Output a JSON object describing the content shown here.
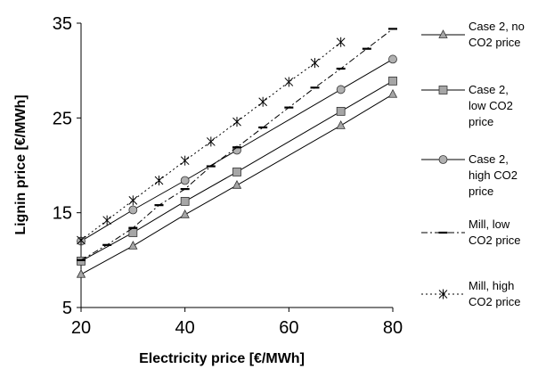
{
  "chart_data": {
    "type": "line",
    "title": "",
    "xlabel": "Electricity price [€/MWh]",
    "ylabel": "Lignin price [€/MWh]",
    "xlim": [
      20,
      80
    ],
    "ylim": [
      5,
      35
    ],
    "xticks": [
      "20",
      "40",
      "60",
      "80"
    ],
    "yticks": [
      "5",
      "15",
      "25",
      "35"
    ],
    "grid": false,
    "legend_position": "right",
    "series": [
      {
        "name": "Case 2, no CO2 price",
        "label_lines": [
          "Case 2, no",
          "CO2 price"
        ],
        "marker": "triangle",
        "line": "solid",
        "x": [
          20,
          30,
          40,
          50,
          70,
          80
        ],
        "y": [
          8.5,
          11.5,
          14.8,
          17.9,
          24.2,
          27.5
        ]
      },
      {
        "name": "Case 2, low CO2 price",
        "label_lines": [
          "Case 2,",
          "low CO2",
          "price"
        ],
        "marker": "square",
        "line": "solid",
        "x": [
          20,
          30,
          40,
          50,
          70,
          80
        ],
        "y": [
          9.9,
          12.9,
          16.2,
          19.3,
          25.7,
          28.9
        ]
      },
      {
        "name": "Case 2, high CO2 price",
        "label_lines": [
          "Case 2,",
          "high CO2",
          "price"
        ],
        "marker": "circle",
        "line": "solid",
        "x": [
          20,
          30,
          40,
          50,
          70,
          80
        ],
        "y": [
          12.0,
          15.3,
          18.4,
          21.6,
          28.0,
          31.2
        ]
      },
      {
        "name": "Mill, low CO2 price",
        "label_lines": [
          "Mill, low",
          "CO2 price"
        ],
        "marker": "dash",
        "line": "dashdot",
        "x": [
          20,
          25,
          30,
          35,
          40,
          45,
          50,
          55,
          60,
          65,
          70,
          75,
          80
        ],
        "y": [
          10.0,
          11.6,
          13.4,
          15.8,
          17.5,
          19.9,
          21.9,
          24.0,
          26.1,
          28.2,
          30.2,
          32.3,
          34.4
        ]
      },
      {
        "name": "Mill, high CO2 price",
        "label_lines": [
          "Mill, high",
          "CO2 price"
        ],
        "marker": "star",
        "line": "dotted",
        "x": [
          20,
          25,
          30,
          35,
          40,
          45,
          50,
          55,
          60,
          65,
          70
        ],
        "y": [
          12.1,
          14.2,
          16.3,
          18.4,
          20.5,
          22.5,
          24.6,
          26.7,
          28.8,
          30.8,
          33.0
        ]
      }
    ]
  }
}
